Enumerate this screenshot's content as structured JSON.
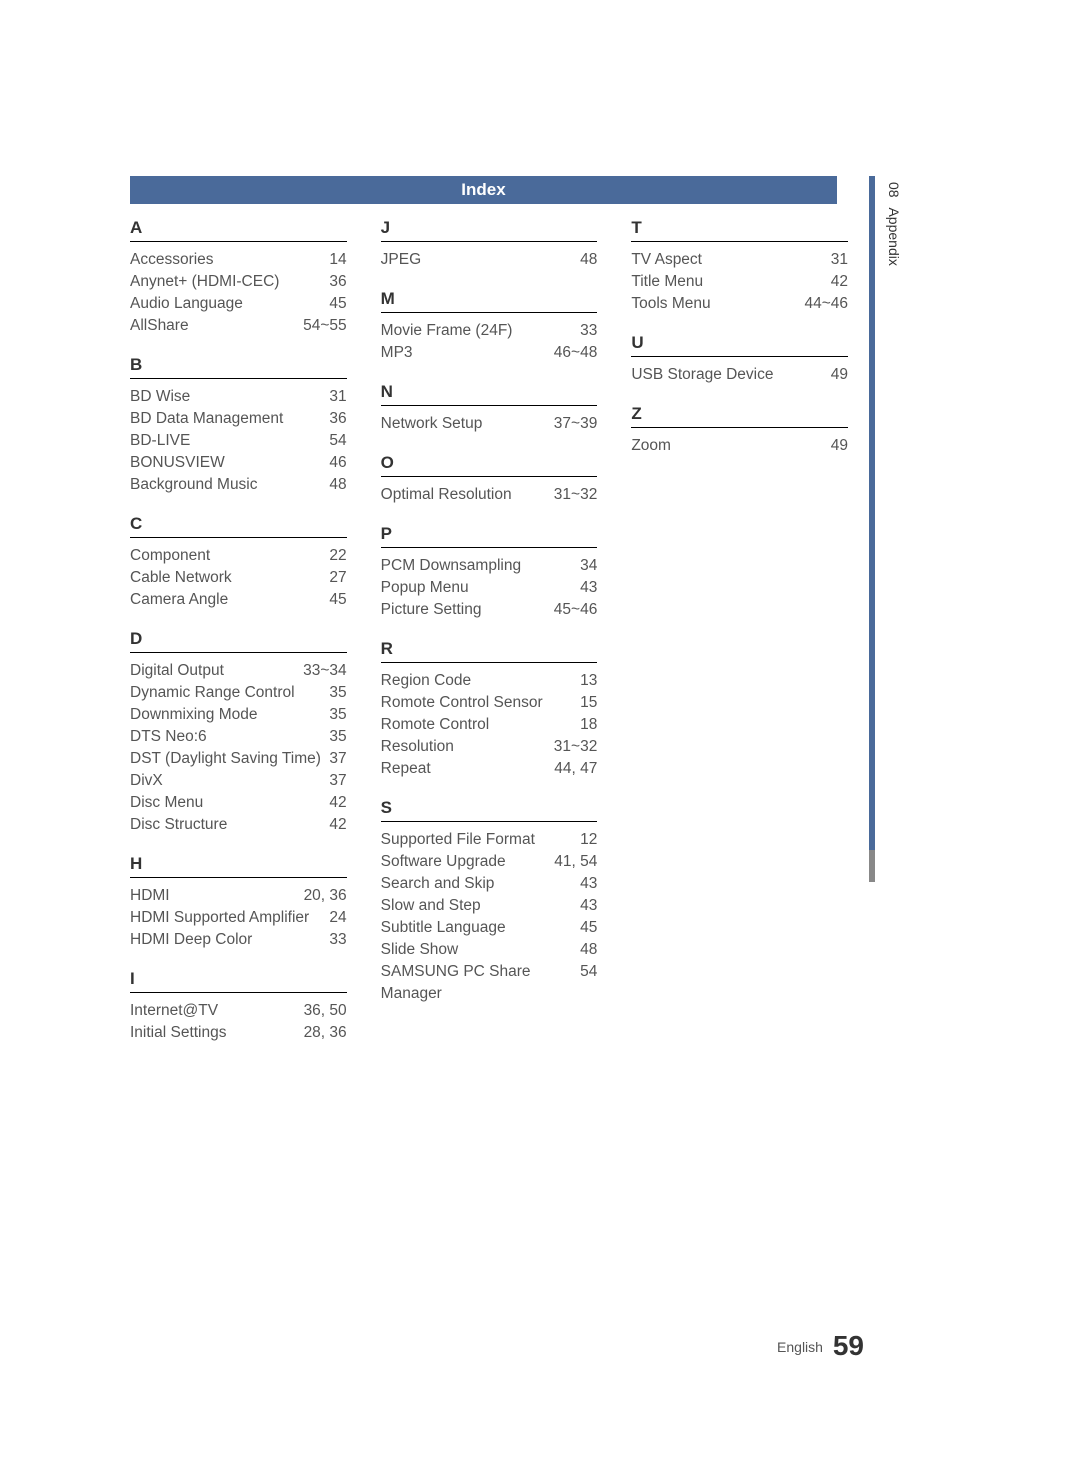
{
  "title_bar": "Index",
  "side_chapter": "08",
  "side_label": "Appendix",
  "footer_lang": "English",
  "footer_page": "59",
  "columns": [
    [
      {
        "letter": "A",
        "entries": [
          {
            "term": "Accessories",
            "page": "14"
          },
          {
            "term": "Anynet+ (HDMI-CEC)",
            "page": "36"
          },
          {
            "term": "Audio Language",
            "page": "45"
          },
          {
            "term": "AllShare",
            "page": "54~55"
          }
        ]
      },
      {
        "letter": "B",
        "entries": [
          {
            "term": "BD Wise",
            "page": "31"
          },
          {
            "term": "BD Data Management",
            "page": "36"
          },
          {
            "term": "BD-LIVE",
            "page": "54"
          },
          {
            "term": "BONUSVIEW",
            "page": "46"
          },
          {
            "term": "Background Music",
            "page": "48"
          }
        ]
      },
      {
        "letter": "C",
        "entries": [
          {
            "term": "Component",
            "page": "22"
          },
          {
            "term": "Cable Network",
            "page": "27"
          },
          {
            "term": "Camera Angle",
            "page": "45"
          }
        ]
      },
      {
        "letter": "D",
        "entries": [
          {
            "term": "Digital Output",
            "page": "33~34"
          },
          {
            "term": "Dynamic Range Control",
            "page": "35"
          },
          {
            "term": "Downmixing Mode",
            "page": "35"
          },
          {
            "term": "DTS Neo:6",
            "page": "35"
          },
          {
            "term": "DST (Daylight Saving Time)",
            "page": "37"
          },
          {
            "term": "DivX",
            "page": "37"
          },
          {
            "term": "Disc Menu",
            "page": "42"
          },
          {
            "term": "Disc Structure",
            "page": "42"
          }
        ]
      },
      {
        "letter": "H",
        "entries": [
          {
            "term": "HDMI",
            "page": "20, 36"
          },
          {
            "term": "HDMI Supported Amplifier",
            "page": "24"
          },
          {
            "term": "HDMI Deep Color",
            "page": "33"
          }
        ]
      },
      {
        "letter": "I",
        "entries": [
          {
            "term": "Internet@TV",
            "page": "36, 50"
          },
          {
            "term": "Initial Settings",
            "page": "28, 36"
          }
        ]
      }
    ],
    [
      {
        "letter": "J",
        "entries": [
          {
            "term": "JPEG",
            "page": "48"
          }
        ]
      },
      {
        "letter": "M",
        "entries": [
          {
            "term": "Movie Frame (24F)",
            "page": "33"
          },
          {
            "term": "MP3",
            "page": "46~48"
          }
        ]
      },
      {
        "letter": "N",
        "entries": [
          {
            "term": "Network Setup",
            "page": "37~39"
          }
        ]
      },
      {
        "letter": "O",
        "entries": [
          {
            "term": "Optimal Resolution",
            "page": "31~32"
          }
        ]
      },
      {
        "letter": "P",
        "entries": [
          {
            "term": "PCM Downsampling",
            "page": "34"
          },
          {
            "term": "Popup Menu",
            "page": "43"
          },
          {
            "term": "Picture Setting",
            "page": "45~46"
          }
        ]
      },
      {
        "letter": "R",
        "entries": [
          {
            "term": "Region Code",
            "page": "13"
          },
          {
            "term": "Romote Control Sensor",
            "page": "15"
          },
          {
            "term": "Romote Control",
            "page": "18"
          },
          {
            "term": "Resolution",
            "page": "31~32"
          },
          {
            "term": "Repeat",
            "page": "44, 47"
          }
        ]
      },
      {
        "letter": "S",
        "entries": [
          {
            "term": "Supported File Format",
            "page": "12"
          },
          {
            "term": "Software Upgrade",
            "page": "41, 54"
          },
          {
            "term": "Search and Skip",
            "page": "43"
          },
          {
            "term": "Slow and Step",
            "page": "43"
          },
          {
            "term": "Subtitle Language",
            "page": "45"
          },
          {
            "term": "Slide Show",
            "page": "48"
          },
          {
            "term": "SAMSUNG PC Share Manager",
            "page": "54"
          }
        ]
      }
    ],
    [
      {
        "letter": "T",
        "entries": [
          {
            "term": "TV Aspect",
            "page": "31"
          },
          {
            "term": "Title Menu",
            "page": "42"
          },
          {
            "term": "Tools Menu",
            "page": "44~46"
          }
        ]
      },
      {
        "letter": "U",
        "entries": [
          {
            "term": "USB Storage Device",
            "page": "49"
          }
        ]
      },
      {
        "letter": "Z",
        "entries": [
          {
            "term": "Zoom",
            "page": "49"
          }
        ]
      }
    ]
  ]
}
